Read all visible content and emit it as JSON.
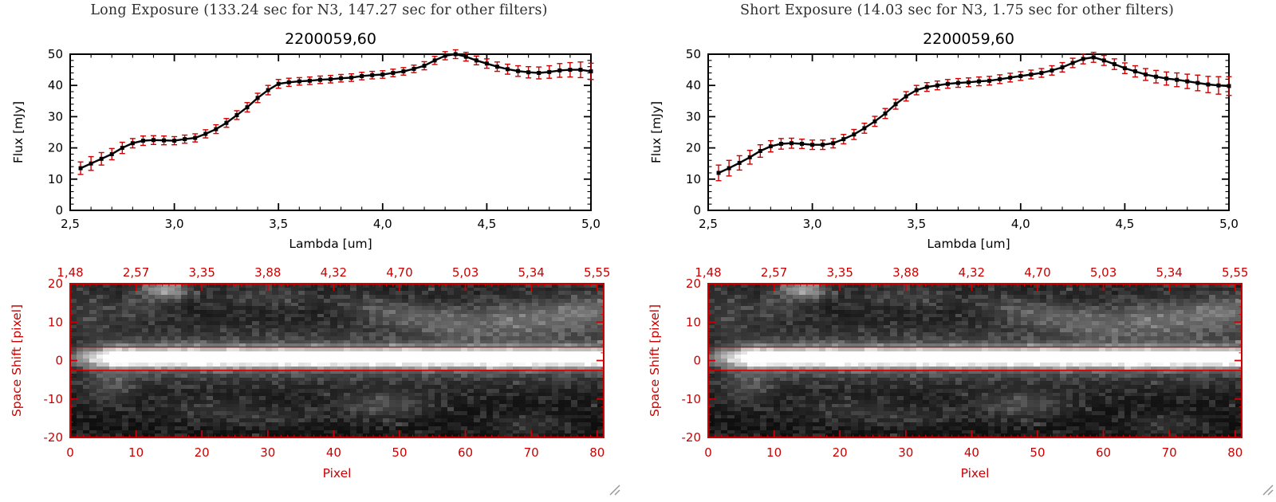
{
  "colors": {
    "red": "#cc0000",
    "black": "#000000",
    "header_text": "#2e2e2e",
    "grip": "#999999"
  },
  "panels": [
    {
      "header": "Long Exposure (133.24 sec for N3, 147.27 sec for other filters)"
    },
    {
      "header": "Short Exposure (14.03 sec for N3, 1.75 sec for other filters)"
    }
  ],
  "chart_data": [
    {
      "type": "line",
      "panel": "long-exposure",
      "title": "2200059,60",
      "xlabel": "Lambda [um]",
      "ylabel": "Flux [mJy]",
      "xlim": [
        2.5,
        5.0
      ],
      "ylim": [
        0,
        50
      ],
      "xticks": [
        2.5,
        3.0,
        3.5,
        4.0,
        4.5,
        5.0
      ],
      "xtick_labels": [
        "2,5",
        "3,0",
        "3,5",
        "4,0",
        "4,5",
        "5,0"
      ],
      "yticks": [
        0,
        10,
        20,
        30,
        40,
        50
      ],
      "marker": "filled-square-black",
      "error_bar_color": "#cc0000",
      "x": [
        2.55,
        2.6,
        2.65,
        2.7,
        2.75,
        2.8,
        2.85,
        2.9,
        2.95,
        3.0,
        3.05,
        3.1,
        3.15,
        3.2,
        3.25,
        3.3,
        3.35,
        3.4,
        3.45,
        3.5,
        3.55,
        3.6,
        3.65,
        3.7,
        3.75,
        3.8,
        3.85,
        3.9,
        3.95,
        4.0,
        4.05,
        4.1,
        4.15,
        4.2,
        4.25,
        4.3,
        4.35,
        4.4,
        4.45,
        4.5,
        4.55,
        4.6,
        4.65,
        4.7,
        4.75,
        4.8,
        4.85,
        4.9,
        4.95,
        5.0
      ],
      "y": [
        13.5,
        15.0,
        16.5,
        18.0,
        20.0,
        21.5,
        22.3,
        22.5,
        22.4,
        22.3,
        22.8,
        23.2,
        24.5,
        26.0,
        28.0,
        30.5,
        33.0,
        36.0,
        38.5,
        40.5,
        41.0,
        41.3,
        41.5,
        41.8,
        42.0,
        42.3,
        42.5,
        43.0,
        43.3,
        43.5,
        44.0,
        44.5,
        45.3,
        46.3,
        48.0,
        49.5,
        50.0,
        49.2,
        48.0,
        47.0,
        46.0,
        45.2,
        44.6,
        44.2,
        44.0,
        44.3,
        44.8,
        45.0,
        45.0,
        44.5
      ],
      "yerr": [
        2.0,
        2.2,
        2.0,
        1.8,
        1.8,
        1.5,
        1.5,
        1.4,
        1.4,
        1.3,
        1.3,
        1.3,
        1.3,
        1.4,
        1.4,
        1.4,
        1.5,
        1.5,
        1.5,
        1.4,
        1.3,
        1.2,
        1.2,
        1.2,
        1.2,
        1.2,
        1.2,
        1.2,
        1.2,
        1.2,
        1.2,
        1.2,
        1.2,
        1.3,
        1.3,
        1.3,
        1.4,
        1.4,
        1.4,
        1.5,
        1.5,
        1.6,
        1.7,
        1.8,
        1.9,
        2.0,
        2.2,
        2.3,
        2.5,
        2.6
      ]
    },
    {
      "type": "heatmap",
      "panel": "long-exposure",
      "description": "Grayscale 2D slitless spectral image with bright horizontal source trace near row 0, red IDL axes",
      "xlabel": "Pixel",
      "ylabel": "Space Shift [pixel]",
      "xlim": [
        0,
        81
      ],
      "ylim": [
        -20,
        20
      ],
      "xticks": [
        0,
        10,
        20,
        30,
        40,
        50,
        60,
        70,
        80
      ],
      "yticks": [
        -20,
        -10,
        0,
        10,
        20
      ],
      "top_axis_labels": [
        "1,48",
        "2,57",
        "3,35",
        "3,88",
        "4,32",
        "4,70",
        "5,03",
        "5,34",
        "5,55"
      ],
      "aperture_lines": [
        3.5,
        -2.5
      ],
      "axis_color": "#cc0000",
      "render": {
        "seed": 1337,
        "band_center": 0.8,
        "band_sigma": 1.8,
        "blobs": [
          [
            14,
            19,
            0.5,
            2.5,
            1.8
          ],
          [
            2,
            12,
            0.12,
            3,
            5
          ],
          [
            10,
            14,
            0.14,
            3,
            2
          ],
          [
            30,
            17,
            0.12,
            5,
            2
          ],
          [
            45,
            15,
            0.1,
            4,
            2
          ],
          [
            52,
            12,
            0.22,
            5,
            2.5
          ],
          [
            58,
            9,
            0.15,
            3,
            2
          ],
          [
            68,
            11,
            0.28,
            6,
            3.5
          ],
          [
            79,
            13,
            0.3,
            4,
            3
          ],
          [
            48,
            -12,
            0.2,
            5,
            2.5
          ],
          [
            30,
            -15,
            0.1,
            6,
            2
          ],
          [
            5,
            -7,
            0.15,
            3,
            4
          ],
          [
            20,
            -13,
            0.1,
            5,
            2
          ],
          [
            70,
            -17,
            0.12,
            4,
            2
          ]
        ]
      }
    },
    {
      "type": "line",
      "panel": "short-exposure",
      "title": "2200059,60",
      "xlabel": "Lambda [um]",
      "ylabel": "Flux [mJy]",
      "xlim": [
        2.5,
        5.0
      ],
      "ylim": [
        0,
        50
      ],
      "xticks": [
        2.5,
        3.0,
        3.5,
        4.0,
        4.5,
        5.0
      ],
      "xtick_labels": [
        "2,5",
        "3,0",
        "3,5",
        "4,0",
        "4,5",
        "5,0"
      ],
      "yticks": [
        0,
        10,
        20,
        30,
        40,
        50
      ],
      "marker": "filled-square-black",
      "error_bar_color": "#cc0000",
      "x": [
        2.55,
        2.6,
        2.65,
        2.7,
        2.75,
        2.8,
        2.85,
        2.9,
        2.95,
        3.0,
        3.05,
        3.1,
        3.15,
        3.2,
        3.25,
        3.3,
        3.35,
        3.4,
        3.45,
        3.5,
        3.55,
        3.6,
        3.65,
        3.7,
        3.75,
        3.8,
        3.85,
        3.9,
        3.95,
        4.0,
        4.05,
        4.1,
        4.15,
        4.2,
        4.25,
        4.3,
        4.35,
        4.4,
        4.45,
        4.5,
        4.55,
        4.6,
        4.65,
        4.7,
        4.75,
        4.8,
        4.85,
        4.9,
        4.95,
        5.0
      ],
      "y": [
        12.0,
        13.5,
        15.2,
        17.0,
        19.0,
        20.5,
        21.3,
        21.5,
        21.3,
        21.0,
        21.0,
        21.5,
        22.8,
        24.3,
        26.3,
        28.5,
        31.0,
        34.0,
        36.5,
        38.5,
        39.5,
        40.0,
        40.5,
        40.8,
        41.0,
        41.3,
        41.5,
        42.0,
        42.5,
        43.0,
        43.5,
        44.0,
        44.8,
        45.8,
        47.2,
        48.5,
        49.0,
        48.0,
        46.8,
        45.5,
        44.5,
        43.5,
        42.8,
        42.2,
        41.8,
        41.3,
        40.8,
        40.3,
        40.0,
        39.8
      ],
      "yerr": [
        2.5,
        2.5,
        2.3,
        2.2,
        2.0,
        1.8,
        1.7,
        1.6,
        1.5,
        1.5,
        1.5,
        1.5,
        1.5,
        1.6,
        1.6,
        1.6,
        1.6,
        1.6,
        1.5,
        1.5,
        1.4,
        1.4,
        1.4,
        1.4,
        1.4,
        1.4,
        1.4,
        1.4,
        1.4,
        1.4,
        1.4,
        1.4,
        1.5,
        1.5,
        1.5,
        1.6,
        1.6,
        1.6,
        1.7,
        1.7,
        1.8,
        1.9,
        2.0,
        2.1,
        2.2,
        2.3,
        2.5,
        2.6,
        2.8,
        3.0
      ]
    },
    {
      "type": "heatmap",
      "panel": "short-exposure",
      "description": "Grayscale 2D slitless spectral image with bright horizontal source trace near row 0, red IDL axes",
      "xlabel": "Pixel",
      "ylabel": "Space Shift [pixel]",
      "xlim": [
        0,
        81
      ],
      "ylim": [
        -20,
        20
      ],
      "xticks": [
        0,
        10,
        20,
        30,
        40,
        50,
        60,
        70,
        80
      ],
      "yticks": [
        -20,
        -10,
        0,
        10,
        20
      ],
      "top_axis_labels": [
        "1,48",
        "2,57",
        "3,35",
        "3,88",
        "4,32",
        "4,70",
        "5,03",
        "5,34",
        "5,55"
      ],
      "aperture_lines": [
        3.5,
        -2.5
      ],
      "axis_color": "#cc0000",
      "render": {
        "seed": 1337,
        "band_center": 0.8,
        "band_sigma": 1.8,
        "blobs": [
          [
            14,
            19,
            0.5,
            2.5,
            1.8
          ],
          [
            2,
            12,
            0.12,
            3,
            5
          ],
          [
            10,
            14,
            0.14,
            3,
            2
          ],
          [
            30,
            17,
            0.12,
            5,
            2
          ],
          [
            45,
            15,
            0.1,
            4,
            2
          ],
          [
            52,
            12,
            0.22,
            5,
            2.5
          ],
          [
            58,
            9,
            0.15,
            3,
            2
          ],
          [
            68,
            11,
            0.28,
            6,
            3.5
          ],
          [
            79,
            13,
            0.3,
            4,
            3
          ],
          [
            48,
            -12,
            0.2,
            5,
            2.5
          ],
          [
            30,
            -15,
            0.1,
            6,
            2
          ],
          [
            5,
            -7,
            0.15,
            3,
            4
          ],
          [
            20,
            -13,
            0.1,
            5,
            2
          ],
          [
            70,
            -17,
            0.12,
            4,
            2
          ]
        ]
      }
    }
  ]
}
